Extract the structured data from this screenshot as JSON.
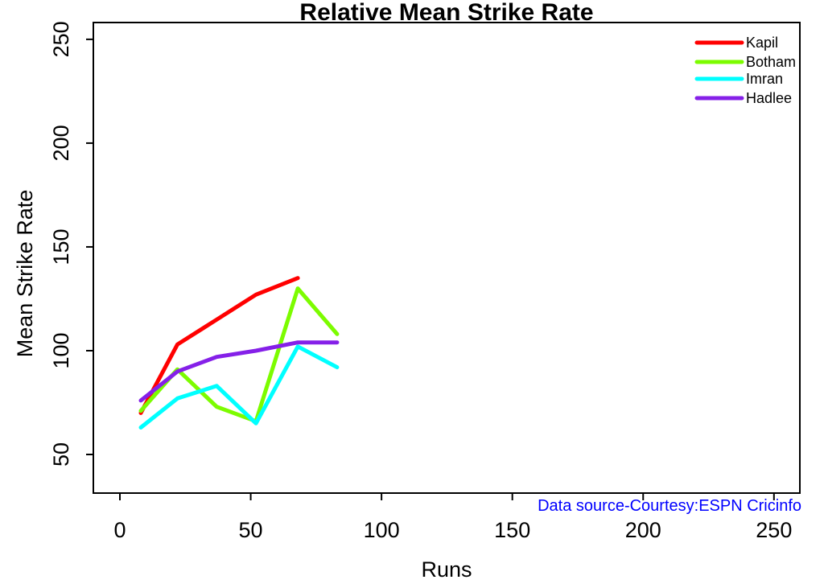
{
  "title": "Relative Mean Strike Rate",
  "xlabel": "Runs",
  "ylabel": "Mean Strike Rate",
  "datasource_note": "Data source-Courtesy:ESPN Cricinfo",
  "colors": {
    "axis": "#000000",
    "title_text": "#000000",
    "datasource_text": "#0000FF",
    "background": "#FFFFFF",
    "kapil": "#FF0000",
    "botham": "#7CFC00",
    "imran": "#00FFFF",
    "hadlee": "#8520E8"
  },
  "chart_data": {
    "type": "line",
    "title": "Relative Mean Strike Rate",
    "xlabel": "Runs",
    "ylabel": "Mean Strike Rate",
    "xlim": [
      -10.15,
      259.9
    ],
    "ylim": [
      31.4,
      258.1
    ],
    "xticks": [
      0,
      50,
      100,
      150,
      200,
      250
    ],
    "yticks": [
      50,
      100,
      150,
      200,
      250
    ],
    "grid": false,
    "legend_position": "top-right",
    "legend": [
      "Kapil",
      "Botham",
      "Imran",
      "Hadlee"
    ],
    "series": [
      {
        "name": "Kapil",
        "color": "#FF0000",
        "x": [
          8,
          22,
          37,
          52,
          68
        ],
        "y": [
          70,
          103,
          115,
          127,
          135
        ]
      },
      {
        "name": "Botham",
        "color": "#7CFC00",
        "x": [
          8,
          22,
          37,
          52,
          68,
          83
        ],
        "y": [
          71,
          91,
          73,
          66,
          130,
          108
        ]
      },
      {
        "name": "Imran",
        "color": "#00FFFF",
        "x": [
          8,
          22,
          37,
          52,
          68,
          83
        ],
        "y": [
          63,
          77,
          83,
          65,
          102,
          92
        ]
      },
      {
        "name": "Hadlee",
        "color": "#8520E8",
        "x": [
          8,
          22,
          37,
          52,
          68,
          83
        ],
        "y": [
          76,
          90,
          97,
          100,
          104,
          104
        ]
      }
    ],
    "annotation": "Data source-Courtesy:ESPN Cricinfo"
  }
}
